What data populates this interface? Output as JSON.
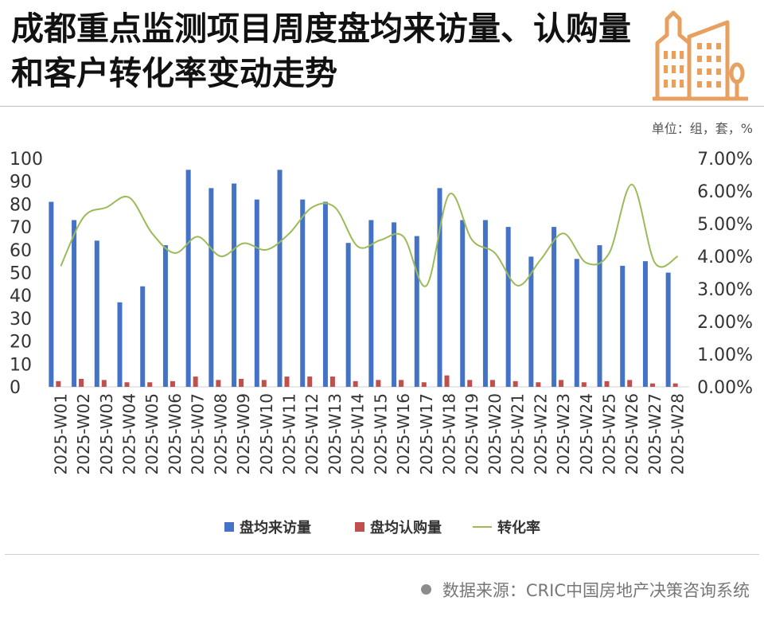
{
  "title": "成都重点监测项目周度盘均来访量、认购量和客户转化率变动走势",
  "unit_label": "单位：组，套，%",
  "source_label": "数据来源：CRIC中国房地产决策咨询系统",
  "colors": {
    "visits": "#4472C4",
    "purchases": "#C0504D",
    "conversion": "#9BBB59",
    "logo": "#E8A060"
  },
  "icons": [
    "buildings-logo-icon",
    "bullet-dot-icon"
  ],
  "chart_data": {
    "type": "bar",
    "categories": [
      "2025-W01",
      "2025-W02",
      "2025-W03",
      "2025-W04",
      "2025-W05",
      "2025-W06",
      "2025-W07",
      "2025-W08",
      "2025-W09",
      "2025-W10",
      "2025-W11",
      "2025-W12",
      "2025-W13",
      "2025-W14",
      "2025-W15",
      "2025-W16",
      "2025-W17",
      "2025-W18",
      "2025-W19",
      "2025-W20",
      "2025-W21",
      "2025-W22",
      "2025-W23",
      "2025-W24",
      "2025-W25",
      "2025-W26",
      "2025-W27",
      "2025-W28"
    ],
    "series": [
      {
        "name": "盘均来访量",
        "type": "bar",
        "axis": "left",
        "values": [
          81,
          73,
          64,
          37,
          44,
          62,
          95,
          87,
          89,
          82,
          95,
          82,
          81,
          63,
          73,
          72,
          66,
          87,
          73,
          73,
          70,
          57,
          70,
          56,
          62,
          53,
          55,
          50
        ]
      },
      {
        "name": "盘均认购量",
        "type": "bar",
        "axis": "left",
        "values": [
          2.5,
          3.5,
          3,
          2,
          2,
          2.5,
          4.5,
          3,
          3.5,
          3,
          4.5,
          4.5,
          4.5,
          2.5,
          3,
          3,
          2,
          5,
          3,
          3,
          2.5,
          2,
          3,
          2,
          2.5,
          3,
          1.5,
          1.5
        ]
      },
      {
        "name": "转化率",
        "type": "line",
        "axis": "right",
        "values": [
          3.7,
          5.2,
          5.5,
          5.8,
          4.7,
          4.1,
          4.6,
          4.0,
          4.4,
          4.2,
          4.7,
          5.5,
          5.5,
          4.3,
          4.5,
          4.6,
          3.1,
          5.9,
          4.5,
          4.1,
          3.1,
          3.9,
          4.7,
          3.8,
          4.1,
          6.2,
          3.8,
          4.0
        ]
      }
    ],
    "y_left": {
      "ticks": [
        "0",
        "10",
        "20",
        "30",
        "40",
        "50",
        "60",
        "70",
        "80",
        "90",
        "100"
      ],
      "range": [
        0,
        100
      ]
    },
    "y_right": {
      "ticks": [
        "0.00%",
        "1.00%",
        "2.00%",
        "3.00%",
        "4.00%",
        "5.00%",
        "6.00%",
        "7.00%"
      ],
      "range": [
        0,
        7
      ]
    },
    "legend_position": "bottom",
    "grid": false,
    "smooth_line": true
  }
}
